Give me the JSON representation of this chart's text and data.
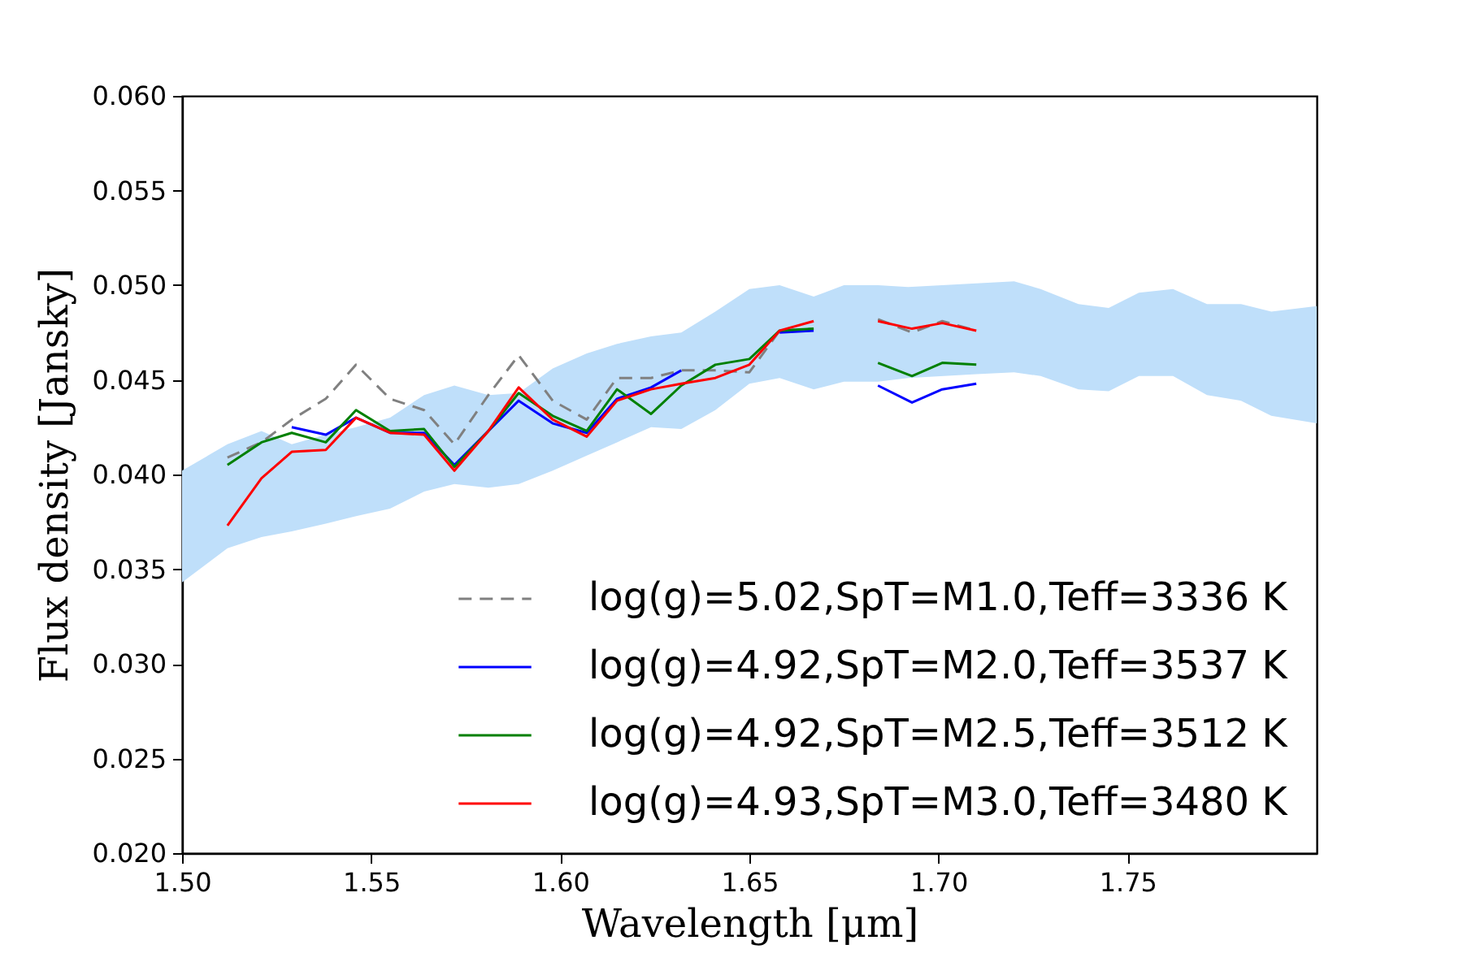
{
  "chart_data": {
    "type": "line",
    "xlabel": "Wavelength [μm]",
    "ylabel": "Flux density [Jansky]",
    "xlim": [
      1.5,
      1.8
    ],
    "ylim": [
      0.02,
      0.06
    ],
    "xticks": [
      {
        "value": 1.5,
        "label": "1.50"
      },
      {
        "value": 1.55,
        "label": "1.55"
      },
      {
        "value": 1.6,
        "label": "1.60"
      },
      {
        "value": 1.65,
        "label": "1.65"
      },
      {
        "value": 1.7,
        "label": "1.70"
      },
      {
        "value": 1.75,
        "label": "1.75"
      }
    ],
    "yticks": [
      {
        "value": 0.02,
        "label": "0.020"
      },
      {
        "value": 0.025,
        "label": "0.025"
      },
      {
        "value": 0.03,
        "label": "0.030"
      },
      {
        "value": 0.035,
        "label": "0.035"
      },
      {
        "value": 0.04,
        "label": "0.040"
      },
      {
        "value": 0.045,
        "label": "0.045"
      },
      {
        "value": 0.05,
        "label": "0.050"
      },
      {
        "value": 0.055,
        "label": "0.055"
      },
      {
        "value": 0.06,
        "label": "0.060"
      }
    ],
    "legend": "bottom right",
    "grid": false,
    "x": [
      1.512,
      1.521,
      1.529,
      1.538,
      1.546,
      1.555,
      1.564,
      1.572,
      1.581,
      1.589,
      1.598,
      1.607,
      1.615,
      1.624,
      1.632,
      1.641,
      1.65,
      1.658,
      1.667,
      1.675,
      1.684,
      1.693,
      1.701,
      1.71
    ],
    "series": [
      {
        "type": "area",
        "color": "#bfdffa",
        "values": [
          null,
          null,
          null,
          null,
          null,
          null,
          null,
          null,
          null,
          null,
          null,
          null,
          null,
          null,
          null,
          null,
          null,
          null,
          null,
          null,
          null,
          null,
          null,
          null,
          null,
          null,
          null,
          null,
          null,
          null,
          null,
          null,
          null,
          null
        ],
        "x": [
          1.5,
          1.512,
          1.521,
          1.529,
          1.538,
          1.546,
          1.555,
          1.564,
          1.572,
          1.581,
          1.589,
          1.598,
          1.607,
          1.615,
          1.624,
          1.632,
          1.641,
          1.65,
          1.658,
          1.667,
          1.675,
          1.684,
          1.692,
          1.71,
          1.72,
          1.727,
          1.737,
          1.745,
          1.753,
          1.762,
          1.771,
          1.78,
          1.788,
          1.8
        ],
        "lower": [
          0.0343,
          0.0361,
          0.0367,
          0.037,
          0.0374,
          0.0378,
          0.0382,
          0.0391,
          0.0395,
          0.0393,
          0.0395,
          0.0402,
          0.041,
          0.0417,
          0.0425,
          0.0424,
          0.0434,
          0.0448,
          0.0451,
          0.0445,
          0.0449,
          0.0449,
          0.0451,
          0.0453,
          0.0454,
          0.0452,
          0.0445,
          0.0444,
          0.0452,
          0.0452,
          0.0442,
          0.0439,
          0.0431,
          0.0427
        ],
        "upper": [
          0.0402,
          0.0416,
          0.0423,
          0.0416,
          0.0421,
          0.0425,
          0.043,
          0.0442,
          0.0447,
          0.0442,
          0.0443,
          0.0456,
          0.0464,
          0.0469,
          0.0473,
          0.0475,
          0.0486,
          0.0498,
          0.05,
          0.0494,
          0.05,
          0.05,
          0.0499,
          0.0501,
          0.0502,
          0.0498,
          0.049,
          0.0488,
          0.0496,
          0.0498,
          0.049,
          0.049,
          0.0486,
          0.0489
        ]
      },
      {
        "name": "log(g)=5.02,SpT=M1.0,Teff=3336 K",
        "color": "#808080",
        "line_style": "dashed",
        "values": [
          0.0409,
          0.0417,
          0.0429,
          0.044,
          0.0458,
          0.044,
          0.0434,
          0.0416,
          0.0442,
          0.0463,
          0.0439,
          0.0429,
          0.0451,
          0.0451,
          0.0455,
          0.0455,
          0.0454,
          0.0476,
          0.0477,
          null,
          0.0482,
          0.0475,
          0.0481,
          0.0476
        ]
      },
      {
        "name": "log(g)=4.92,SpT=M2.0,Teff=3537 K",
        "color": "#0000ff",
        "line_style": "solid",
        "values": [
          null,
          null,
          0.0425,
          0.0421,
          0.043,
          0.0422,
          0.0422,
          0.0405,
          0.0423,
          0.0439,
          0.0427,
          0.0422,
          0.044,
          0.0446,
          0.0455,
          null,
          null,
          0.0475,
          0.0476,
          null,
          0.0447,
          0.0438,
          0.0445,
          0.0448
        ]
      },
      {
        "name": "log(g)=4.92,SpT=M2.5,Teff=3512 K",
        "color": "#008000",
        "line_style": "solid",
        "values": [
          0.0405,
          0.0417,
          0.0422,
          0.0417,
          0.0434,
          0.0423,
          0.0424,
          0.0404,
          0.0423,
          0.0443,
          0.0431,
          0.0423,
          0.0445,
          0.0432,
          0.0447,
          0.0458,
          0.0461,
          0.0476,
          0.0477,
          null,
          0.0459,
          0.0452,
          0.0459,
          0.0458
        ]
      },
      {
        "name": "log(g)=4.93,SpT=M3.0,Teff=3480 K",
        "color": "#ff0000",
        "line_style": "solid",
        "values": [
          0.0373,
          0.0398,
          0.0412,
          0.0413,
          0.043,
          0.0422,
          0.0421,
          0.0402,
          0.0423,
          0.0446,
          0.0429,
          0.042,
          0.0439,
          0.0445,
          0.0448,
          0.0451,
          0.0458,
          0.0476,
          0.0481,
          null,
          0.0481,
          0.0477,
          0.048,
          0.0476
        ]
      }
    ]
  }
}
